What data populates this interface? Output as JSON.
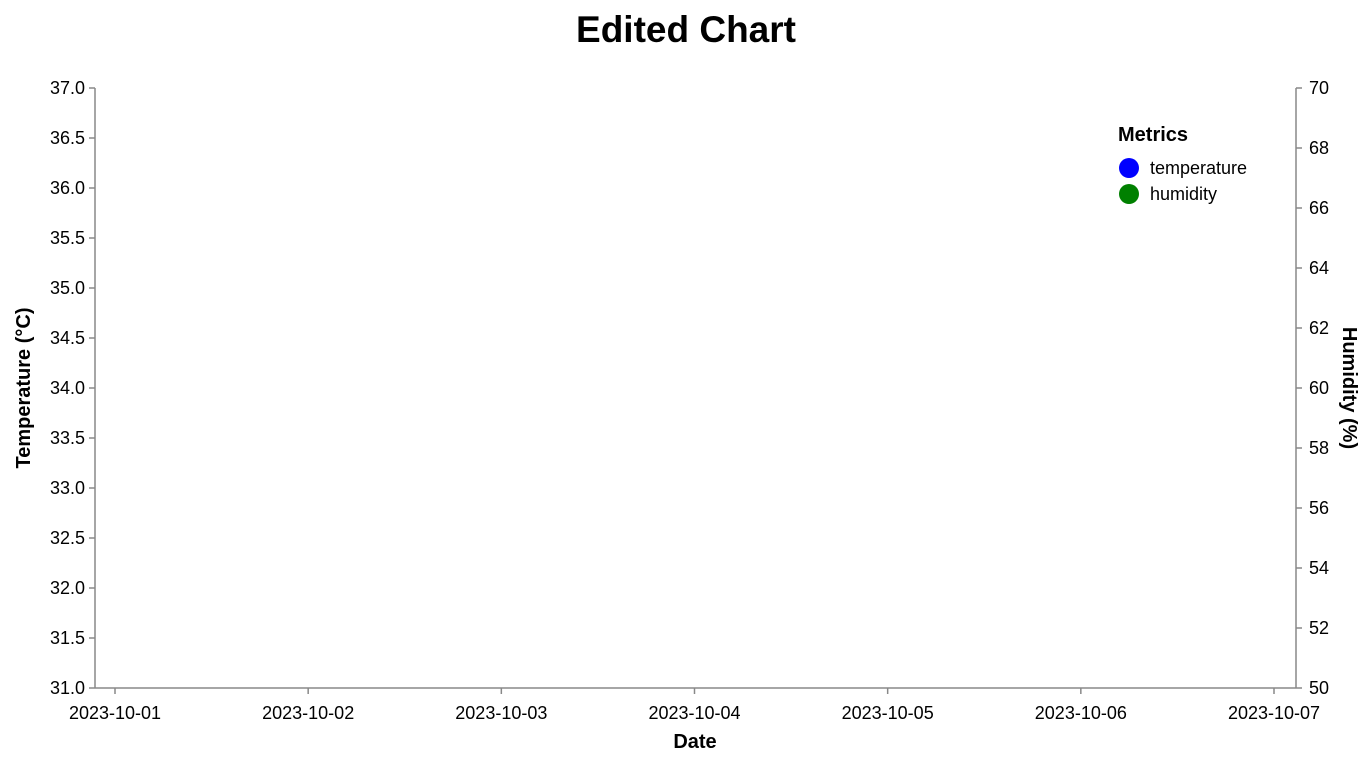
{
  "chart_data": {
    "type": "line",
    "title": "Edited Chart",
    "xlabel": "Date",
    "ylabel": "Temperature (°C)",
    "y2label": "Humidity (%)",
    "x_ticks": [
      "2023-10-01",
      "2023-10-02",
      "2023-10-03",
      "2023-10-04",
      "2023-10-05",
      "2023-10-06",
      "2023-10-07"
    ],
    "ylim": [
      31.0,
      37.0
    ],
    "y_ticks": [
      "31.0",
      "31.5",
      "32.0",
      "32.5",
      "33.0",
      "33.5",
      "34.0",
      "34.5",
      "35.0",
      "35.5",
      "36.0",
      "36.5",
      "37.0"
    ],
    "y2lim": [
      50,
      70
    ],
    "y2_ticks": [
      "50",
      "52",
      "54",
      "56",
      "58",
      "60",
      "62",
      "64",
      "66",
      "68",
      "70"
    ],
    "grid": false,
    "legend": {
      "title": "Metrics",
      "placement": "top-right",
      "items": [
        {
          "label": "temperature",
          "color": "#0000ff"
        },
        {
          "label": "humidity",
          "color": "#008000"
        }
      ]
    },
    "series": [
      {
        "name": "temperature",
        "axis": "left",
        "color": "#0000ff",
        "values": []
      },
      {
        "name": "humidity",
        "axis": "right",
        "color": "#008000",
        "values": []
      }
    ]
  }
}
